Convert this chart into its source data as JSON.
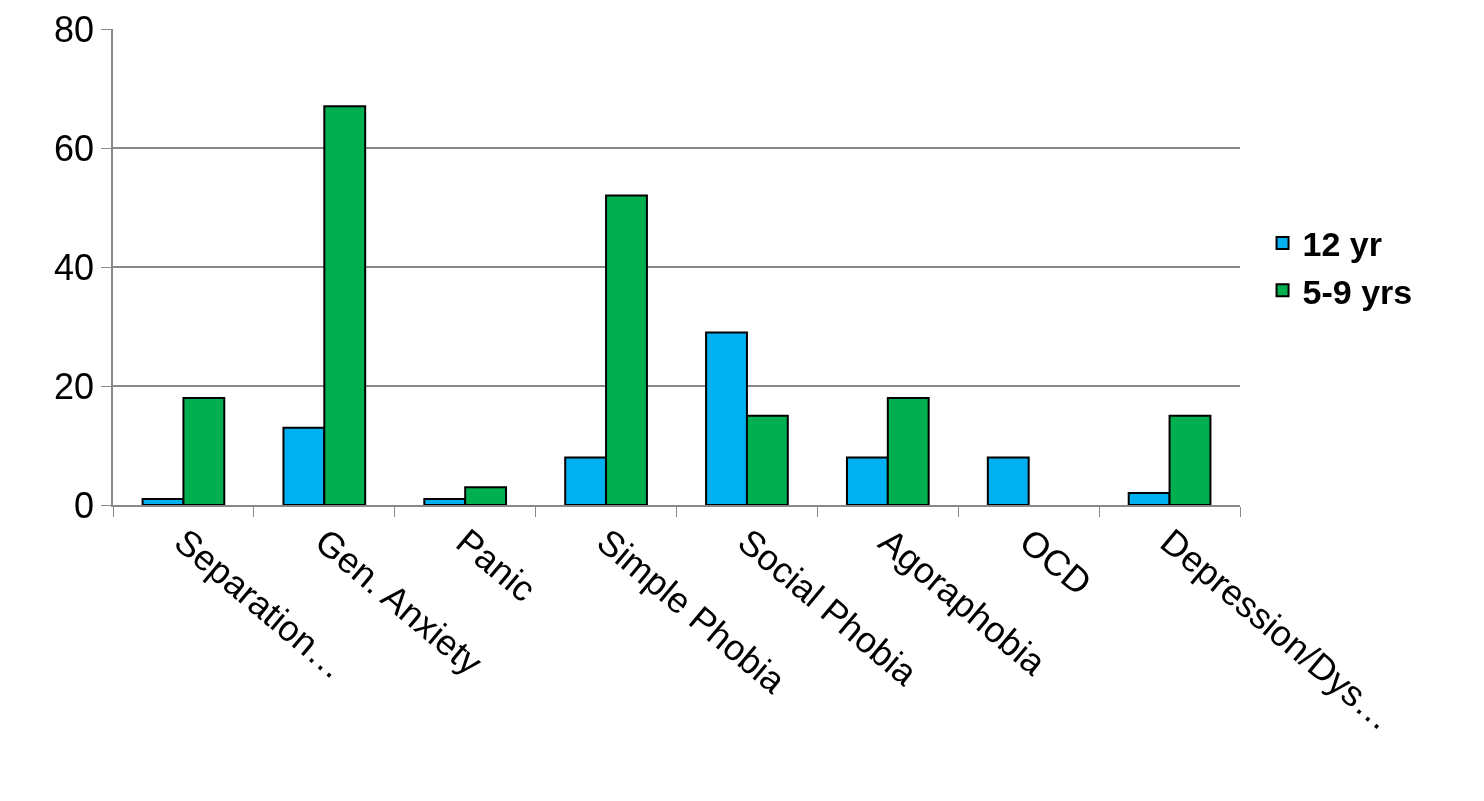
{
  "chart_data": {
    "type": "bar",
    "categories": [
      "Separation…",
      "Gen. Anxiety",
      "Panic",
      "Simple Phobia",
      "Social Phobia",
      "Agoraphobia",
      "OCD",
      "Depression/Dys…"
    ],
    "series": [
      {
        "name": "12 yr",
        "color": "#00b0f0",
        "values": [
          1,
          13,
          1,
          8,
          29,
          8,
          8,
          2
        ]
      },
      {
        "name": "5-9 yrs",
        "color": "#00b050",
        "values": [
          18,
          67,
          3,
          52,
          15,
          18,
          null,
          15
        ]
      }
    ],
    "ylim": [
      0,
      80
    ],
    "yticks": [
      0,
      20,
      40,
      60,
      80
    ],
    "grid": "y",
    "legend": "right"
  }
}
